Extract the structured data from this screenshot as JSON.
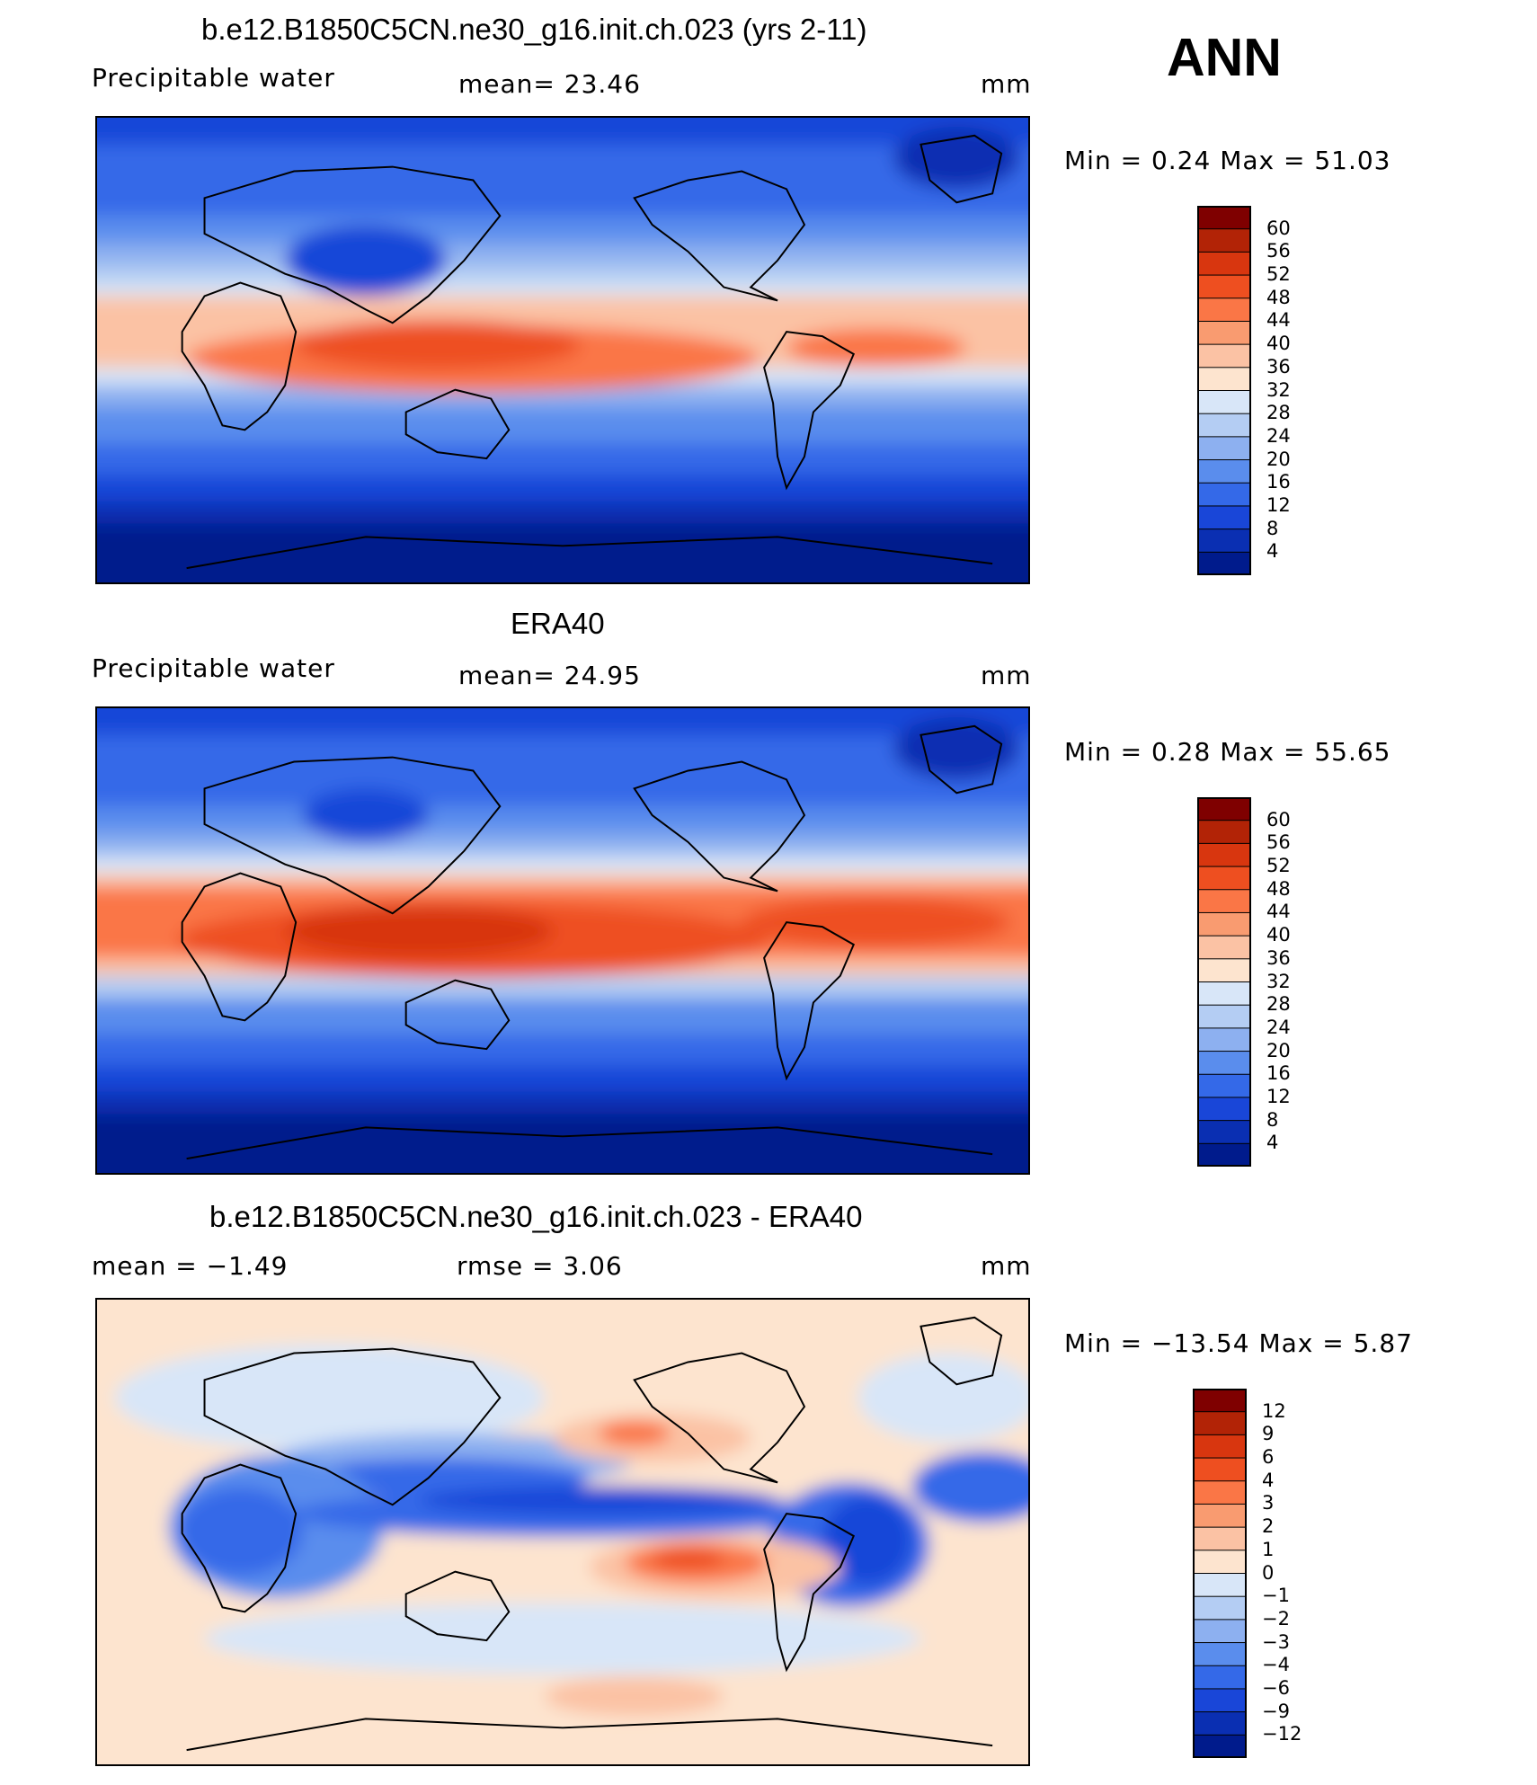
{
  "panels": [
    {
      "title": "b.e12.B1850C5CN.ne30_g16.init.ch.023 (yrs 2-11)",
      "variable": "Precipitable water",
      "stat1": "mean=   23.46",
      "stat2": "",
      "units": "mm",
      "minmax": "Min =    0.24  Max =   51.03",
      "colorbar": {
        "labels": [
          "60",
          "56",
          "52",
          "48",
          "44",
          "40",
          "36",
          "32",
          "28",
          "24",
          "20",
          "16",
          "12",
          "8",
          "4"
        ],
        "colors": [
          "#7f0000",
          "#b22306",
          "#d8360f",
          "#ee4f20",
          "#fa7646",
          "#f99b70",
          "#fbc2a4",
          "#fde4cf",
          "#d8e6f8",
          "#b4cdf3",
          "#8db0f0",
          "#5a8ded",
          "#3469e8",
          "#1946d8",
          "#0a2fb2",
          "#001b8c"
        ]
      }
    },
    {
      "title": "ERA40",
      "variable": "Precipitable water",
      "stat1": "mean=   24.95",
      "stat2": "",
      "units": "mm",
      "minmax": "Min =    0.28  Max =   55.65",
      "colorbar": {
        "labels": [
          "60",
          "56",
          "52",
          "48",
          "44",
          "40",
          "36",
          "32",
          "28",
          "24",
          "20",
          "16",
          "12",
          "8",
          "4"
        ],
        "colors": [
          "#7f0000",
          "#b22306",
          "#d8360f",
          "#ee4f20",
          "#fa7646",
          "#f99b70",
          "#fbc2a4",
          "#fde4cf",
          "#d8e6f8",
          "#b4cdf3",
          "#8db0f0",
          "#5a8ded",
          "#3469e8",
          "#1946d8",
          "#0a2fb2",
          "#001b8c"
        ]
      }
    },
    {
      "title": "b.e12.B1850C5CN.ne30_g16.init.ch.023 - ERA40",
      "variable": "",
      "stat1": "mean =   −1.49",
      "stat2": "rmse =     3.06",
      "units": "mm",
      "minmax": "Min = −13.54  Max =    5.87",
      "colorbar": {
        "labels": [
          "12",
          "9",
          "6",
          "4",
          "3",
          "2",
          "1",
          "0",
          "−1",
          "−2",
          "−3",
          "−4",
          "−6",
          "−9",
          "−12"
        ],
        "colors": [
          "#7f0000",
          "#b22306",
          "#d8360f",
          "#ee4f20",
          "#fa7646",
          "#f99b70",
          "#fbc2a4",
          "#fde4cf",
          "#d8e6f8",
          "#b4cdf3",
          "#8db0f0",
          "#5a8ded",
          "#3469e8",
          "#1946d8",
          "#0a2fb2",
          "#001b8c"
        ]
      }
    }
  ],
  "season": "ANN",
  "chart_data": [
    {
      "type": "heatmap",
      "title": "b.e12.B1850C5CN.ne30_g16.init.ch.023 (yrs 2-11)",
      "subtitle": "Precipitable water",
      "units": "mm",
      "mean": 23.46,
      "min": 0.24,
      "max": 51.03,
      "contour_levels": [
        4,
        8,
        12,
        16,
        20,
        24,
        28,
        32,
        36,
        40,
        44,
        48,
        52,
        56,
        60
      ]
    },
    {
      "type": "heatmap",
      "title": "ERA40",
      "subtitle": "Precipitable water",
      "units": "mm",
      "mean": 24.95,
      "min": 0.28,
      "max": 55.65,
      "contour_levels": [
        4,
        8,
        12,
        16,
        20,
        24,
        28,
        32,
        36,
        40,
        44,
        48,
        52,
        56,
        60
      ]
    },
    {
      "type": "heatmap",
      "title": "b.e12.B1850C5CN.ne30_g16.init.ch.023 - ERA40",
      "units": "mm",
      "mean": -1.49,
      "rmse": 3.06,
      "min": -13.54,
      "max": 5.87,
      "contour_levels": [
        -12,
        -9,
        -6,
        -4,
        -3,
        -2,
        -1,
        0,
        1,
        2,
        3,
        4,
        6,
        9,
        12
      ]
    }
  ]
}
